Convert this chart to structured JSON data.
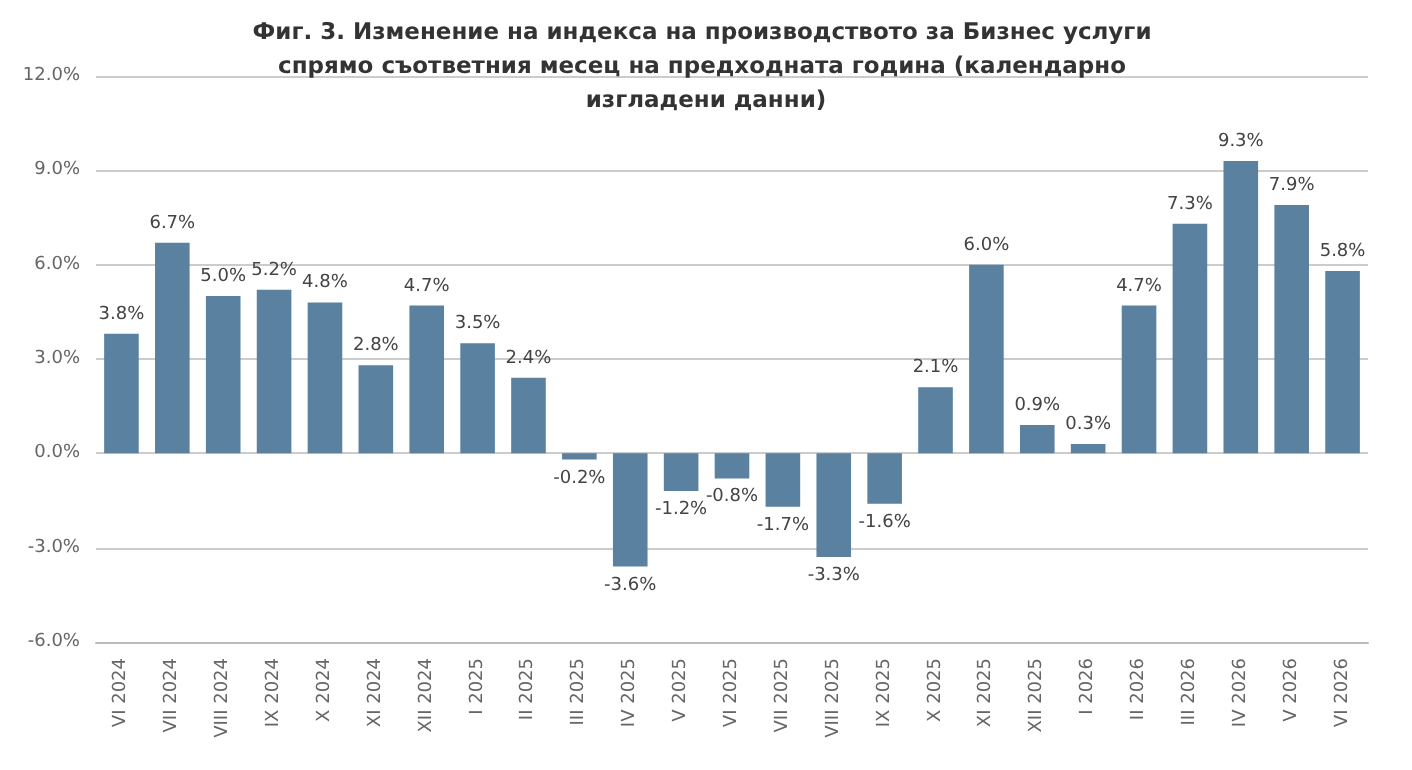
{
  "chart_data": {
    "type": "bar",
    "title": "Фиг. 3. Изменение на индекса на производството за Бизнес услуги спрямо съответния месец на предходната година (календарно изгладени данни)",
    "categories": [
      "VI 2024",
      "VII 2024",
      "VIII 2024",
      "IX 2024",
      "X 2024",
      "XI 2024",
      "XII 2024",
      "I 2025",
      "II 2025",
      "III 2025",
      "IV 2025",
      "V 2025",
      "VI 2025",
      "VII 2025",
      "VIII 2025",
      "IX 2025",
      "X 2025",
      "XI 2025",
      "XII 2025",
      "I 2026",
      "II 2026",
      "III 2026",
      "IV 2026",
      "V 2026",
      "VI 2026"
    ],
    "values": [
      3.8,
      6.7,
      5.0,
      5.2,
      4.8,
      2.8,
      4.7,
      3.5,
      2.4,
      -0.2,
      -3.6,
      -1.2,
      -0.8,
      -1.7,
      -3.3,
      -1.6,
      2.1,
      6.0,
      0.9,
      0.3,
      4.7,
      7.3,
      9.3,
      7.9,
      5.8
    ],
    "value_labels": [
      "3.8%",
      "6.7%",
      "5.0%",
      "5.2%",
      "4.8%",
      "2.8%",
      "4.7%",
      "3.5%",
      "2.4%",
      "-0.2%",
      "-3.6%",
      "-1.2%",
      "-0.8%",
      "-1.7%",
      "-3.3%",
      "-1.6%",
      "2.1%",
      "6.0%",
      "0.9%",
      "0.3%",
      "4.7%",
      "7.3%",
      "9.3%",
      "7.9%",
      "5.8%"
    ],
    "color": "#5a81a0",
    "ylim": [
      -6,
      12
    ],
    "yticks": [
      {
        "value": -6,
        "label": "-6.0%"
      },
      {
        "value": -3,
        "label": "-3.0%"
      },
      {
        "value": 0,
        "label": "0.0%"
      },
      {
        "value": 3,
        "label": "3.0%"
      },
      {
        "value": 6,
        "label": "6.0%"
      },
      {
        "value": 9,
        "label": "9.0%"
      },
      {
        "value": 12,
        "label": "12.0%"
      }
    ],
    "grid": "y"
  }
}
